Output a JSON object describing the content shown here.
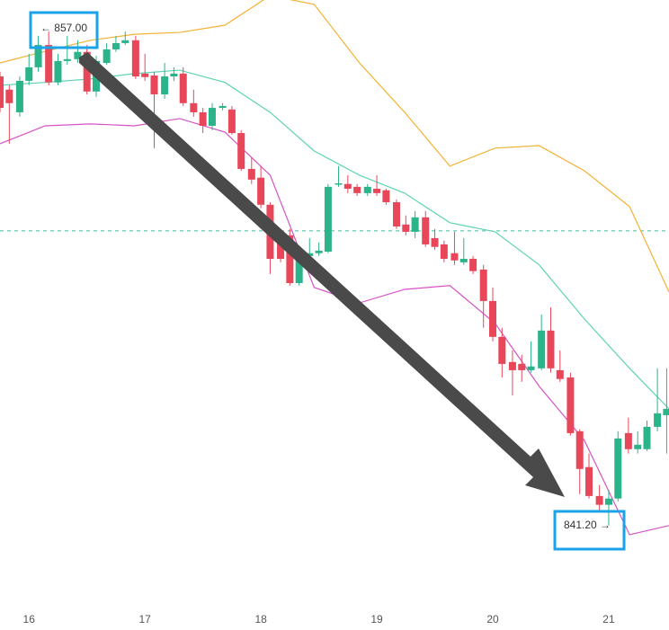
{
  "chart_data": {
    "type": "candlestick",
    "x": [
      15.75,
      15.83,
      15.92,
      16,
      16.08,
      16.17,
      16.25,
      16.33,
      16.42,
      16.5,
      16.58,
      16.67,
      16.75,
      16.83,
      16.92,
      17,
      17.08,
      17.17,
      17.25,
      17.33,
      17.42,
      17.5,
      17.58,
      17.67,
      17.75,
      17.83,
      17.92,
      18,
      18.08,
      18.17,
      18.25,
      18.33,
      18.42,
      18.5,
      18.58,
      18.67,
      18.75,
      18.83,
      18.92,
      19,
      19.08,
      19.17,
      19.25,
      19.33,
      19.42,
      19.5,
      19.58,
      19.67,
      19.75,
      19.83,
      19.92,
      20,
      20.08,
      20.17,
      20.25,
      20.33,
      20.42,
      20.5,
      20.58,
      20.67,
      20.75,
      20.83,
      20.92,
      21,
      21.08,
      21.17,
      21.25,
      21.33,
      21.42,
      21.5
    ],
    "open": [
      855.48,
      855.06,
      854.34,
      855.34,
      855.77,
      856.48,
      855.29,
      855.97,
      856.03,
      856.26,
      855.0,
      855.91,
      856.34,
      856.54,
      856.63,
      855.57,
      855.51,
      854.91,
      855.48,
      855.57,
      854.63,
      854.34,
      853.91,
      854.48,
      854.43,
      853.68,
      852.54,
      852.26,
      851.4,
      850.34,
      850.43,
      848.91,
      849.77,
      849.86,
      849.91,
      852.06,
      852.06,
      851.97,
      851.77,
      851.91,
      851.86,
      851.48,
      850.77,
      850.54,
      851.0,
      850.34,
      850.14,
      849.86,
      849.57,
      849.68,
      849.34,
      848.34,
      847.2,
      846.4,
      846.34,
      846.14,
      846.2,
      847.4,
      846.14,
      845.91,
      844.2,
      843.06,
      842.14,
      841.86,
      842.06,
      844.14,
      843.63,
      843.63,
      844.34,
      844.71
    ],
    "high": [
      855.63,
      855.2,
      855.48,
      856.2,
      856.77,
      856.91,
      856.2,
      856.77,
      856.63,
      856.48,
      856.14,
      856.54,
      856.77,
      856.91,
      856.77,
      856.2,
      855.63,
      855.91,
      855.77,
      855.77,
      855.06,
      854.48,
      854.63,
      854.63,
      854.54,
      853.77,
      852.91,
      852.63,
      851.48,
      850.63,
      850.63,
      849.91,
      850.34,
      850.2,
      852.06,
      852.63,
      852.34,
      852.06,
      852.06,
      852.34,
      851.91,
      851.57,
      851.06,
      851.2,
      851.2,
      850.63,
      850.26,
      850.54,
      850.34,
      849.77,
      849.49,
      848.77,
      847.49,
      846.77,
      846.63,
      847.06,
      847.91,
      848.14,
      846.77,
      846.06,
      844.26,
      843.49,
      842.49,
      842.34,
      844.2,
      844.63,
      844.2,
      844.54,
      846.2,
      846.2
    ],
    "low": [
      854.34,
      853.34,
      854.2,
      855.2,
      855.63,
      855.2,
      855.2,
      855.85,
      855.91,
      854.91,
      854.83,
      855.85,
      856.26,
      856.48,
      855.4,
      855.34,
      853.2,
      854.77,
      855.34,
      854.54,
      854.2,
      853.68,
      853.77,
      854.4,
      853.63,
      852.48,
      852.06,
      851.29,
      849.2,
      849.57,
      848.83,
      848.83,
      849.68,
      849.77,
      849.86,
      851.97,
      851.77,
      851.68,
      851.68,
      851.68,
      851.4,
      850.63,
      850.43,
      850.34,
      850.06,
      849.97,
      849.57,
      849.49,
      849.49,
      849.2,
      847.49,
      847.06,
      845.91,
      845.34,
      845.77,
      846.06,
      846.14,
      846.06,
      845.77,
      844.06,
      842.2,
      842.06,
      841.63,
      841.2,
      841.97,
      843.49,
      843.49,
      843.57,
      844.2,
      843.49
    ],
    "close": [
      854.48,
      854.63,
      855.34,
      855.77,
      856.48,
      855.29,
      855.97,
      856.03,
      856.26,
      855.0,
      855.97,
      856.34,
      856.54,
      856.63,
      855.48,
      855.46,
      854.91,
      855.48,
      855.57,
      854.63,
      854.34,
      853.91,
      854.48,
      854.54,
      853.68,
      852.54,
      852.2,
      851.4,
      849.68,
      849.68,
      848.91,
      849.68,
      849.86,
      849.94,
      851.97,
      852.08,
      851.91,
      851.77,
      851.97,
      851.77,
      851.48,
      850.71,
      850.54,
      851.0,
      850.14,
      850.06,
      849.68,
      849.63,
      849.68,
      849.29,
      848.34,
      847.2,
      846.34,
      846.14,
      846.14,
      846.26,
      847.4,
      846.2,
      845.86,
      844.14,
      843.0,
      842.14,
      841.86,
      842.06,
      843.97,
      843.63,
      843.77,
      844.34,
      844.77,
      844.91
    ],
    "up_color": "#2bb38a",
    "down_color": "#e8475a",
    "xlim": [
      15.75,
      21.52
    ],
    "ylim": [
      837.88,
      857.91
    ],
    "xticks": [
      16,
      17,
      18,
      19,
      20,
      21
    ],
    "overlay_x": [
      15.75,
      16.14,
      16.53,
      16.91,
      17.3,
      17.69,
      18.08,
      18.46,
      18.85,
      19.24,
      19.63,
      20.02,
      20.4,
      20.79,
      21.18,
      21.52
    ],
    "overlays": [
      {
        "color": "#f2b234",
        "values": [
          855.91,
          856.28,
          856.63,
          856.82,
          856.88,
          857.11,
          858.05,
          857.77,
          855.91,
          854.34,
          852.63,
          853.2,
          853.28,
          852.48,
          851.34,
          848.63
        ]
      },
      {
        "color": "#5fd3b4",
        "values": [
          855.2,
          855.29,
          855.4,
          855.57,
          855.68,
          855.29,
          854.34,
          853.11,
          852.34,
          851.77,
          850.83,
          850.54,
          849.49,
          847.77,
          846.2,
          844.91
        ]
      },
      {
        "color": "#d652c6",
        "values": [
          853.34,
          853.91,
          853.97,
          853.91,
          854.14,
          853.71,
          852.34,
          848.77,
          848.28,
          848.71,
          848.83,
          847.63,
          845.63,
          843.91,
          840.91,
          841.2
        ]
      }
    ],
    "reference_line": {
      "value": 850.57,
      "color": "#3dbfa0"
    },
    "annotations": [
      {
        "text": "← 857.00"
      },
      {
        "text": "841.20 →"
      }
    ]
  }
}
